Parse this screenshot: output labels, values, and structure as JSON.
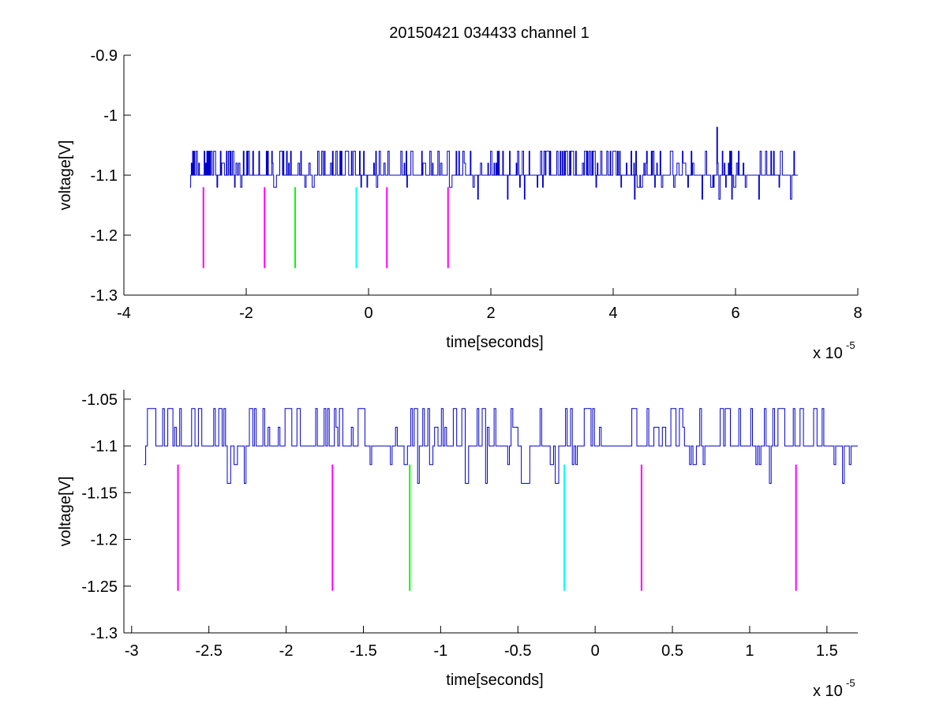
{
  "figure": {
    "title": "20150421 034433 channel 1",
    "background": "#ffffff",
    "signal_color": "#0000cc"
  },
  "chart_data": [
    {
      "type": "line",
      "title": "20150421 034433 channel 1",
      "xlabel": "time[seconds]",
      "ylabel": "voltage[V]",
      "x_exponent_label": "x 10",
      "x_exponent": "-5",
      "x_scale": 1e-05,
      "xlim": [
        -4,
        8
      ],
      "ylim": [
        -1.3,
        -0.9
      ],
      "xticks": [
        -4,
        -2,
        0,
        2,
        4,
        6,
        8
      ],
      "xtick_labels": [
        "-4",
        "-2",
        "0",
        "2",
        "4",
        "6",
        "8"
      ],
      "yticks": [
        -1.3,
        -1.2,
        -1.1,
        -1.0,
        -0.9
      ],
      "ytick_labels": [
        "-1.3",
        "-1.2",
        "-1.1",
        "-1",
        "-0.9"
      ],
      "grid": false,
      "series": [
        {
          "color": "#0000cc",
          "x_range": [
            -2.92,
            7.02
          ],
          "baseline": -1.1,
          "levels": [
            -1.14,
            -1.12,
            -1.1,
            -1.08,
            -1.06
          ],
          "spike": {
            "x": 5.7,
            "y": -1.02
          }
        }
      ],
      "markers": [
        {
          "x": -2.7,
          "y_range": [
            -1.255,
            -1.12
          ],
          "color": "#ff00ff"
        },
        {
          "x": -1.7,
          "y_range": [
            -1.255,
            -1.12
          ],
          "color": "#ff00ff"
        },
        {
          "x": -1.2,
          "y_range": [
            -1.255,
            -1.12
          ],
          "color": "#00ff00"
        },
        {
          "x": -0.2,
          "y_range": [
            -1.255,
            -1.12
          ],
          "color": "#00ffff"
        },
        {
          "x": 0.3,
          "y_range": [
            -1.255,
            -1.12
          ],
          "color": "#ff00ff"
        },
        {
          "x": 1.3,
          "y_range": [
            -1.255,
            -1.12
          ],
          "color": "#ff00ff"
        }
      ]
    },
    {
      "type": "line",
      "title": "",
      "xlabel": "time[seconds]",
      "ylabel": "voltage[V]",
      "x_exponent_label": "x 10",
      "x_exponent": "-5",
      "x_scale": 1e-05,
      "xlim": [
        -3.05,
        1.7
      ],
      "ylim": [
        -1.3,
        -1.04
      ],
      "xticks": [
        -3,
        -2.5,
        -2,
        -1.5,
        -1,
        -0.5,
        0,
        0.5,
        1,
        1.5
      ],
      "xtick_labels": [
        "-3",
        "-2.5",
        "-2",
        "-1.5",
        "-1",
        "-0.5",
        "0",
        "0.5",
        "1",
        "1.5"
      ],
      "yticks": [
        -1.3,
        -1.25,
        -1.2,
        -1.15,
        -1.1,
        -1.05
      ],
      "ytick_labels": [
        "-1.3",
        "-1.25",
        "-1.2",
        "-1.15",
        "-1.1",
        "-1.05"
      ],
      "grid": false,
      "series": [
        {
          "color": "#0000cc",
          "x_range": [
            -2.92,
            1.7
          ],
          "baseline": -1.1,
          "levels": [
            -1.14,
            -1.12,
            -1.1,
            -1.08,
            -1.06
          ]
        }
      ],
      "markers": [
        {
          "x": -2.7,
          "y_range": [
            -1.255,
            -1.12
          ],
          "color": "#ff00ff"
        },
        {
          "x": -1.7,
          "y_range": [
            -1.255,
            -1.12
          ],
          "color": "#ff00ff"
        },
        {
          "x": -1.2,
          "y_range": [
            -1.255,
            -1.12
          ],
          "color": "#00ff00"
        },
        {
          "x": -0.2,
          "y_range": [
            -1.255,
            -1.12
          ],
          "color": "#00ffff"
        },
        {
          "x": 0.3,
          "y_range": [
            -1.255,
            -1.12
          ],
          "color": "#ff00ff"
        },
        {
          "x": 1.3,
          "y_range": [
            -1.255,
            -1.12
          ],
          "color": "#ff00ff"
        }
      ]
    }
  ]
}
